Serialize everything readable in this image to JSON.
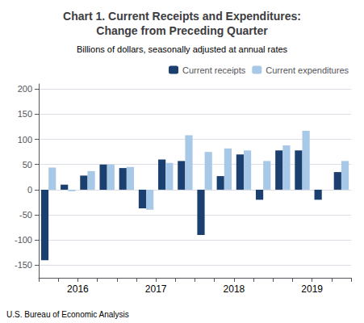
{
  "chart_data": {
    "type": "bar",
    "title": "Chart 1. Current Receipts and Expenditures:\nChange from Preceding Quarter",
    "subtitle": "Billions of dollars, seasonally adjusted at annual rates",
    "annotations": [
      "U.S. Bureau of Economic Analysis"
    ],
    "categories": [
      null,
      "2016",
      null,
      null,
      null,
      "2017",
      null,
      null,
      null,
      "2018",
      null,
      null,
      null,
      "2019",
      null,
      null
    ],
    "series": [
      {
        "name": "Current receipts",
        "color": "#1b3f6e",
        "values": [
          -140,
          10,
          28,
          50,
          43,
          -37,
          60,
          57,
          -90,
          27,
          70,
          -20,
          78,
          78,
          -20,
          35
        ]
      },
      {
        "name": "Current expenditures",
        "color": "#a8c8e8",
        "values": [
          44,
          -3,
          37,
          50,
          45,
          -40,
          53,
          108,
          75,
          82,
          78,
          57,
          88,
          117,
          0,
          57
        ]
      }
    ],
    "ylim": [
      -175,
      210
    ],
    "yticks": [
      -150,
      -100,
      -50,
      0,
      50,
      100,
      150,
      200
    ],
    "grid": true,
    "legend": "upper right"
  }
}
